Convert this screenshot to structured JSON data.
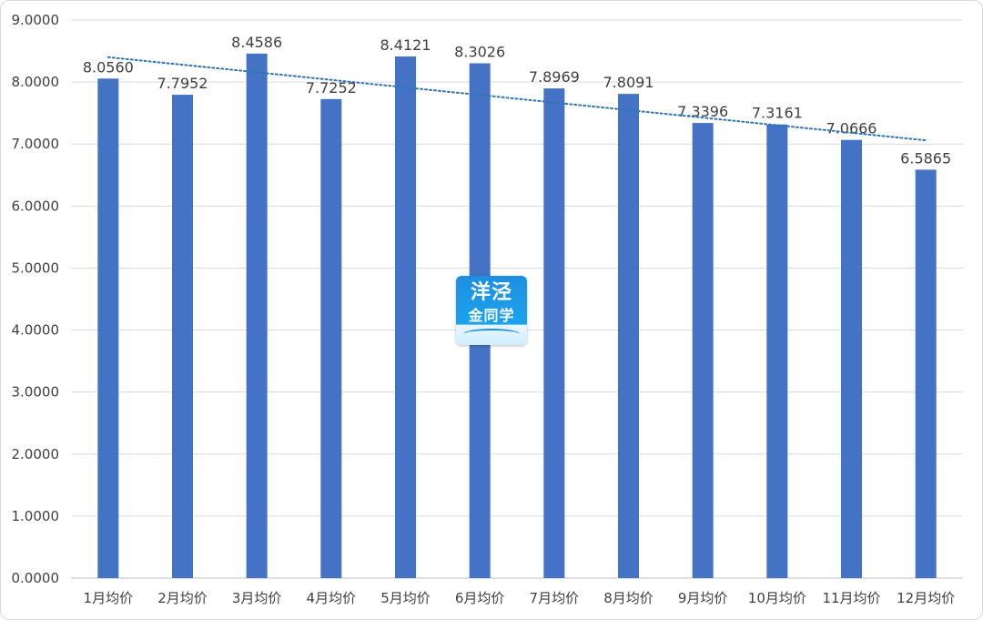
{
  "chart_data": {
    "type": "bar",
    "categories": [
      "1月均价",
      "2月均价",
      "3月均价",
      "4月均价",
      "5月均价",
      "6月均价",
      "7月均价",
      "8月均价",
      "9月均价",
      "10月均价",
      "11月均价",
      "12月均价"
    ],
    "values": [
      8.056,
      7.7952,
      8.4586,
      7.7252,
      8.4121,
      8.3026,
      7.8969,
      7.8091,
      7.3396,
      7.3161,
      7.0666,
      6.5865
    ],
    "value_labels": [
      "8.0560",
      "7.7952",
      "8.4586",
      "7.7252",
      "8.4121",
      "8.3026",
      "7.8969",
      "7.8091",
      "7.3396",
      "7.3161",
      "7.0666",
      "6.5865"
    ],
    "y_ticks": [
      "0.0000",
      "1.0000",
      "2.0000",
      "3.0000",
      "4.0000",
      "5.0000",
      "6.0000",
      "7.0000",
      "8.0000",
      "9.0000"
    ],
    "ylim": [
      0,
      9
    ],
    "grid": true,
    "trendline": "linear",
    "bar_color": "#4472c4",
    "trend_color": "#2e75b6",
    "title": "",
    "xlabel": "",
    "ylabel": ""
  },
  "watermark": {
    "line1": "洋泾",
    "line2": "金同学"
  }
}
